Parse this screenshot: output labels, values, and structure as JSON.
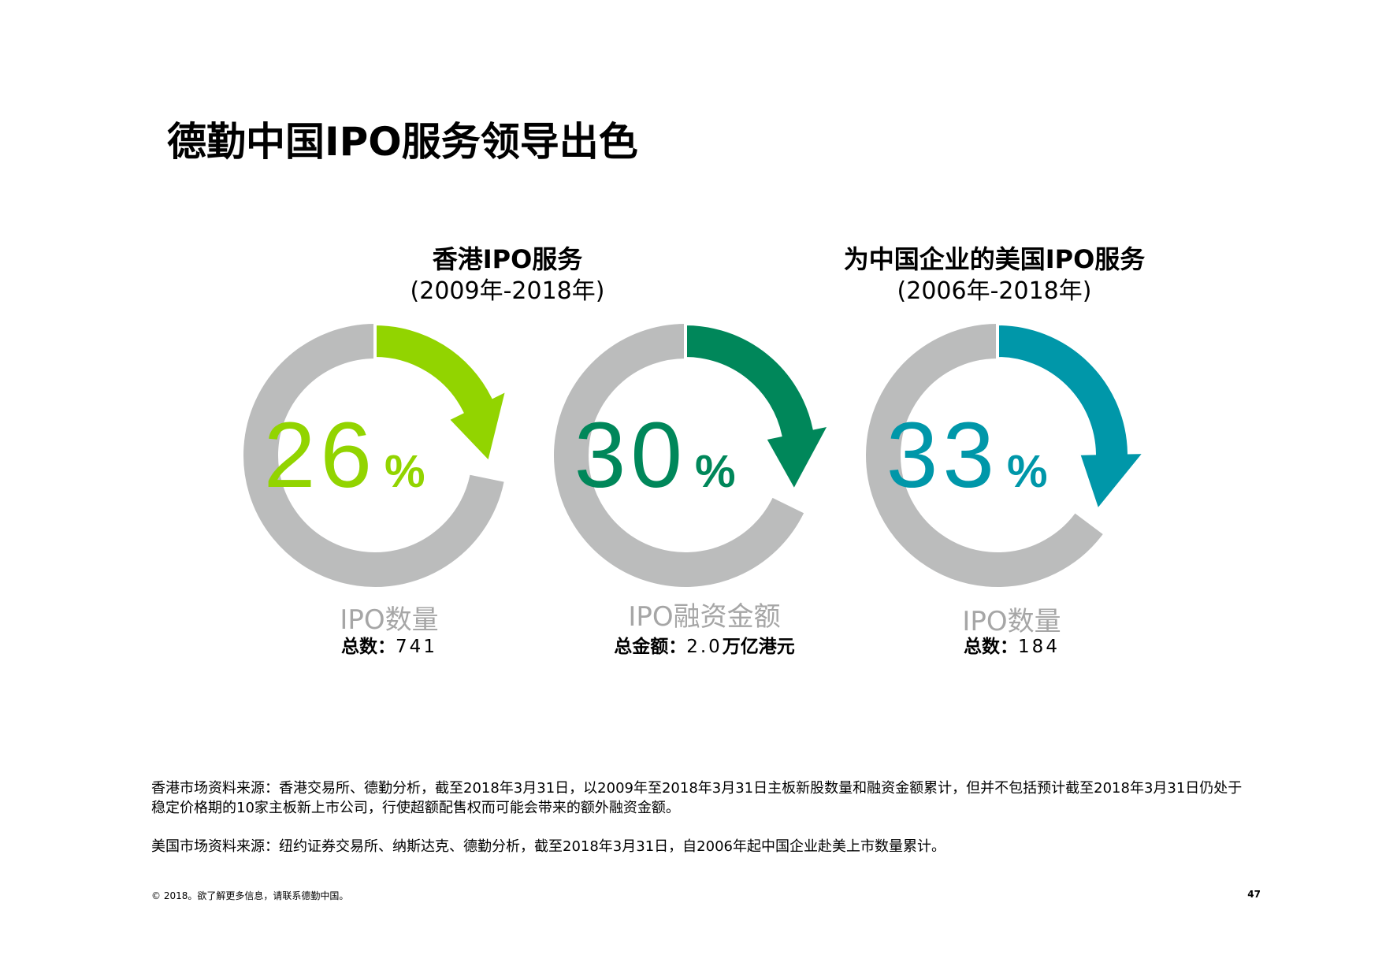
{
  "title": "德勤中国IPO服务领导出色",
  "groups": [
    {
      "heading": "香港IPO服务",
      "period": "(2009年-2018年)"
    },
    {
      "heading": "为中国企业的美国IPO服务",
      "period": "(2006年-2018年)"
    }
  ],
  "chart_data": {
    "type": "donut",
    "items": [
      {
        "percent_value": 26,
        "number": "26",
        "unit": "%",
        "metric": "IPO数量",
        "total_label": "总数：",
        "total_value": "741",
        "total_unit": "",
        "color": "#92d400"
      },
      {
        "percent_value": 30,
        "number": "30",
        "unit": "%",
        "metric": "IPO融资金额",
        "total_label": "总金额：",
        "total_value": "2.0",
        "total_unit": "万亿港元",
        "color": "#00875a"
      },
      {
        "percent_value": 33,
        "number": "33",
        "unit": "%",
        "metric": "IPO数量",
        "total_label": "总数：",
        "total_value": "184",
        "total_unit": "",
        "color": "#0097a9"
      }
    ],
    "track_color": "#bbbcbc"
  },
  "notes": [
    "香港市场资料来源：香港交易所、德勤分析，截至2018年3月31日，以2009年至2018年3月31日主板新股数量和融资金额累计，但并不包括预计截至2018年3月31日仍处于稳定价格期的10家主板新上市公司，行使超额配售权而可能会带来的额外融资金额。",
    "美国市场资料来源：纽约证券交易所、纳斯达克、德勤分析，截至2018年3月31日，自2006年起中国企业赴美上市数量累计。"
  ],
  "footer": "© 2018。欲了解更多信息，请联系德勤中国。",
  "page_number": "47"
}
